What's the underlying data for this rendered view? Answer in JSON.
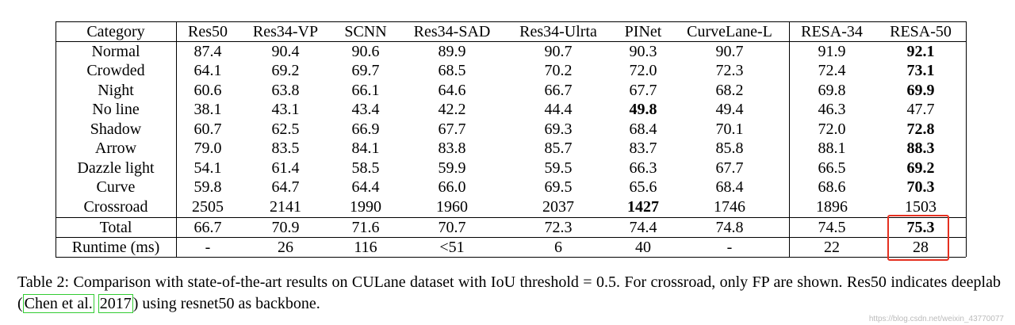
{
  "table": {
    "header": [
      "Category",
      "Res50",
      "Res34-VP",
      "SCNN",
      "Res34-SAD",
      "Res34-Ulrta",
      "PINet",
      "CurveLane-L",
      "RESA-34",
      "RESA-50"
    ],
    "rows": [
      [
        "Normal",
        "87.4",
        "90.4",
        "90.6",
        "89.9",
        "90.7",
        "90.3",
        "90.7",
        "91.9",
        {
          "text": "92.1",
          "bold": true
        }
      ],
      [
        "Crowded",
        "64.1",
        "69.2",
        "69.7",
        "68.5",
        "70.2",
        "72.0",
        "72.3",
        "72.4",
        {
          "text": "73.1",
          "bold": true
        }
      ],
      [
        "Night",
        "60.6",
        "63.8",
        "66.1",
        "64.6",
        "66.7",
        "67.7",
        "68.2",
        "69.8",
        {
          "text": "69.9",
          "bold": true
        }
      ],
      [
        "No line",
        "38.1",
        "43.1",
        "43.4",
        "42.2",
        "44.4",
        {
          "text": "49.8",
          "bold": true
        },
        "49.4",
        "46.3",
        "47.7"
      ],
      [
        "Shadow",
        "60.7",
        "62.5",
        "66.9",
        "67.7",
        "69.3",
        "68.4",
        "70.1",
        "72.0",
        {
          "text": "72.8",
          "bold": true
        }
      ],
      [
        "Arrow",
        "79.0",
        "83.5",
        "84.1",
        "83.8",
        "85.7",
        "83.7",
        "85.8",
        "88.1",
        {
          "text": "88.3",
          "bold": true
        }
      ],
      [
        "Dazzle light",
        "54.1",
        "61.4",
        "58.5",
        "59.9",
        "59.5",
        "66.3",
        "67.7",
        "66.5",
        {
          "text": "69.2",
          "bold": true
        }
      ],
      [
        "Curve",
        "59.8",
        "64.7",
        "64.4",
        "66.0",
        "69.5",
        "65.6",
        "68.4",
        "68.6",
        {
          "text": "70.3",
          "bold": true
        }
      ],
      [
        "Crossroad",
        "2505",
        "2141",
        "1990",
        "1960",
        "2037",
        {
          "text": "1427",
          "bold": true
        },
        "1746",
        "1896",
        "1503"
      ],
      [
        "Total",
        "66.7",
        "70.9",
        "71.6",
        "70.7",
        "72.3",
        "74.4",
        "74.8",
        "74.5",
        {
          "text": "75.3",
          "bold": true
        }
      ],
      [
        "Runtime (ms)",
        "-",
        "26",
        "116",
        "<51",
        "6",
        "40",
        "-",
        "22",
        "28"
      ]
    ]
  },
  "caption": {
    "text_before": "Table 2: Comparison with state-of-the-art results on CULane dataset with IoU threshold = 0.5. For crossroad, only FP are shown. Res50 indicates deeplab (",
    "links": [
      "Chen et al.",
      "2017"
    ],
    "text_after": ") using resnet50 as backbone."
  },
  "watermark": "https://blog.csdn.net/weixin_43770077"
}
